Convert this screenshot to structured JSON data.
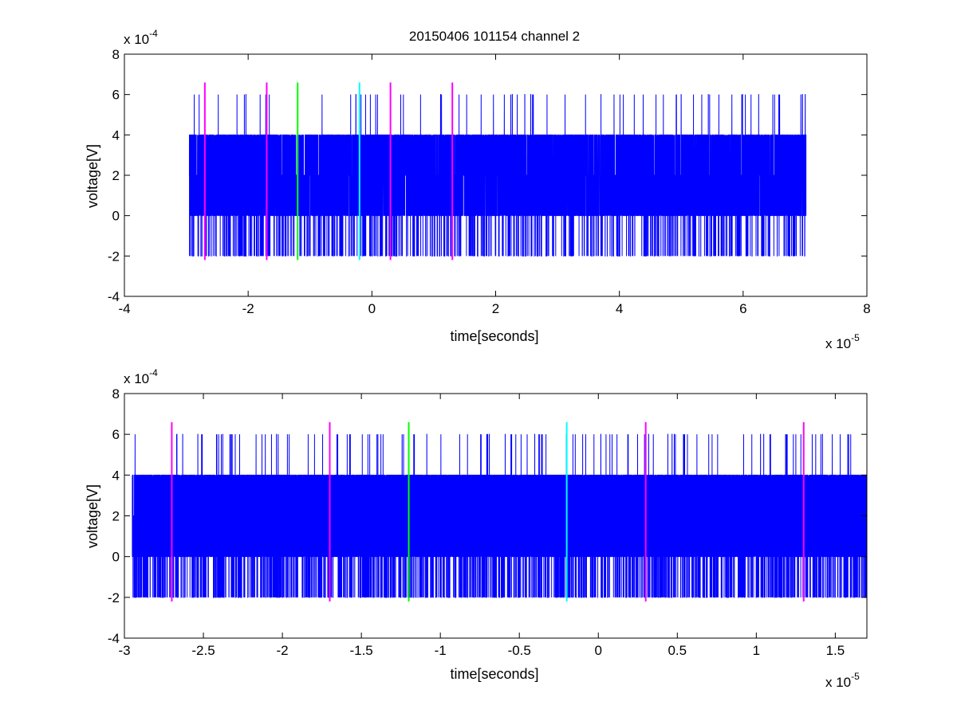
{
  "title": "20150406 101154 channel 2",
  "colors": {
    "signal": "#0000ff",
    "magenta": "#ff00ff",
    "green": "#00ff00",
    "cyan": "#00ffff",
    "axes": "#000000"
  },
  "chart_data": [
    {
      "type": "line",
      "title": "20150406 101154 channel 2",
      "xlabel": "time[seconds]",
      "ylabel": "voltage[V]",
      "x_exponent_label": {
        "base": "x 10",
        "exp": "-5"
      },
      "y_exponent_label": {
        "base": "x 10",
        "exp": "-4"
      },
      "xlim": [
        -4e-05,
        8e-05
      ],
      "ylim": [
        -0.0004,
        0.0008
      ],
      "x_ticks": [
        -4e-05,
        -2e-05,
        0,
        2e-05,
        4e-05,
        6e-05,
        8e-05
      ],
      "x_tick_labels": [
        "-4",
        "-2",
        "0",
        "2",
        "4",
        "6",
        "8"
      ],
      "y_ticks": [
        -0.0004,
        -0.0002,
        0,
        0.0002,
        0.0004,
        0.0006,
        0.0008
      ],
      "y_tick_labels": [
        "-4",
        "-2",
        "0",
        "2",
        "4",
        "6",
        "8"
      ],
      "grid": false,
      "signal": {
        "x_start": -2.95e-05,
        "x_end": 7.02e-05,
        "step": 2e-09,
        "levels": [
          -0.0002,
          0,
          0.0002,
          0.0004,
          0.0006
        ],
        "baseline": 0.0002
      },
      "markers": [
        {
          "x": -2.7e-05,
          "color": "magenta",
          "y_from": -0.00022,
          "y_to": 0.00066
        },
        {
          "x": -1.7e-05,
          "color": "magenta",
          "y_from": -0.00022,
          "y_to": 0.00066
        },
        {
          "x": -1.2e-05,
          "color": "green",
          "y_from": -0.00022,
          "y_to": 0.00066
        },
        {
          "x": -2e-06,
          "color": "cyan",
          "y_from": -0.00022,
          "y_to": 0.00066
        },
        {
          "x": 3e-06,
          "color": "magenta",
          "y_from": -0.00022,
          "y_to": 0.00066
        },
        {
          "x": 1.3e-05,
          "color": "magenta",
          "y_from": -0.00022,
          "y_to": 0.00066
        }
      ]
    },
    {
      "type": "line",
      "title": "",
      "xlabel": "time[seconds]",
      "ylabel": "voltage[V]",
      "x_exponent_label": {
        "base": "x 10",
        "exp": "-5"
      },
      "y_exponent_label": {
        "base": "x 10",
        "exp": "-4"
      },
      "xlim": [
        -3e-05,
        1.7e-05
      ],
      "ylim": [
        -0.0004,
        0.0008
      ],
      "x_ticks": [
        -3e-05,
        -2.5e-05,
        -2e-05,
        -1.5e-05,
        -1e-05,
        -5e-06,
        0,
        5e-06,
        1e-05,
        1.5e-05
      ],
      "x_tick_labels": [
        "-3",
        "-2.5",
        "-2",
        "-1.5",
        "-1",
        "-0.5",
        "0",
        "0.5",
        "1",
        "1.5"
      ],
      "y_ticks": [
        -0.0004,
        -0.0002,
        0,
        0.0002,
        0.0004,
        0.0006,
        0.0008
      ],
      "y_tick_labels": [
        "-4",
        "-2",
        "0",
        "2",
        "4",
        "6",
        "8"
      ],
      "grid": false,
      "signal": {
        "x_start": -2.95e-05,
        "x_end": 1.7e-05,
        "step": 5e-10,
        "levels": [
          -0.0002,
          0,
          0.0002,
          0.0004,
          0.0006
        ],
        "baseline": 0.0002
      },
      "markers": [
        {
          "x": -2.7e-05,
          "color": "magenta",
          "y_from": -0.00022,
          "y_to": 0.00066
        },
        {
          "x": -1.7e-05,
          "color": "magenta",
          "y_from": -0.00022,
          "y_to": 0.00066
        },
        {
          "x": -1.2e-05,
          "color": "green",
          "y_from": -0.00022,
          "y_to": 0.00066
        },
        {
          "x": -2e-06,
          "color": "cyan",
          "y_from": -0.00022,
          "y_to": 0.00066
        },
        {
          "x": 3e-06,
          "color": "magenta",
          "y_from": -0.00022,
          "y_to": 0.00066
        },
        {
          "x": 1.3e-05,
          "color": "magenta",
          "y_from": -0.00022,
          "y_to": 0.00066
        }
      ]
    }
  ]
}
